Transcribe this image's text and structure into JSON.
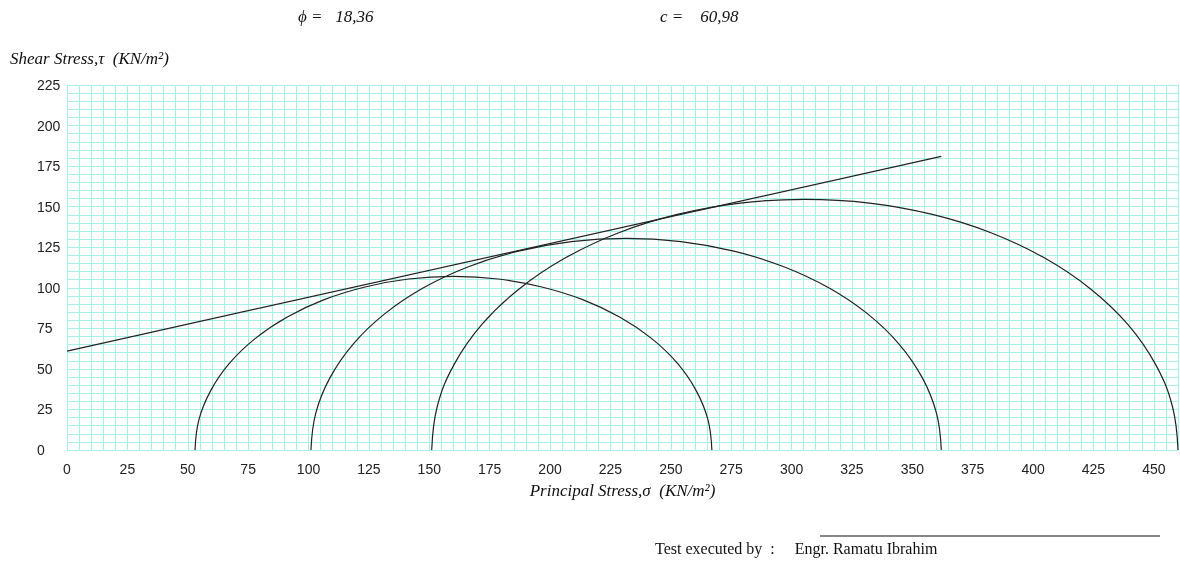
{
  "chart_data": {
    "type": "line",
    "xlabel": "Principal Stress,σ  (KN/m²)",
    "ylabel": "Shear Stress,τ  (KN/m²)",
    "annotations": [
      "ϕ =   18,36",
      "c =    60,98",
      "Test executed by  :     Engr. Ramatu Ibrahim"
    ],
    "series": [
      {
        "color": "#222222",
        "x": [
          0,
          362
        ],
        "values": [
          61,
          181
        ]
      },
      {
        "color": "#222222",
        "x": [
          53,
          54.6,
          59.5,
          67.3,
          78,
          91.2,
          106.5,
          123.4,
          141.4,
          160,
          178.6,
          196.6,
          213.5,
          228.8,
          242,
          252.7,
          260.5,
          265.4,
          267
        ],
        "values": [
          0,
          18.6,
          36.6,
          53.5,
          68.8,
          82,
          92.7,
          100.5,
          105.4,
          107,
          105.4,
          100.5,
          92.7,
          82,
          68.8,
          53.5,
          36.6,
          18.6,
          0
        ]
      },
      {
        "color": "#222222",
        "x": [
          101,
          103,
          108.9,
          118.5,
          131.5,
          147.6,
          166.2,
          186.9,
          208.8,
          231.5,
          254.2,
          276.1,
          296.8,
          315.4,
          331.5,
          344.5,
          354.1,
          360,
          362
        ],
        "values": [
          0,
          22.7,
          44.6,
          65.3,
          83.9,
          100,
          113,
          122.6,
          128.5,
          130.5,
          128.5,
          122.6,
          113,
          100,
          83.9,
          65.3,
          44.6,
          22.7,
          0
        ]
      },
      {
        "color": "#222222",
        "x": [
          151,
          153.3,
          160.3,
          171.7,
          187.2,
          206.2,
          228.2,
          252.7,
          278.7,
          305.5,
          332.3,
          358.3,
          382.8,
          404.8,
          423.8,
          439.3,
          450.7,
          457.7,
          460
        ],
        "values": [
          0,
          26.8,
          52.8,
          77.3,
          99.3,
          118.3,
          133.8,
          145.2,
          152.2,
          154.5,
          152.2,
          145.2,
          133.8,
          118.3,
          99.3,
          77.3,
          52.8,
          26.8,
          0
        ]
      }
    ],
    "xlim": [
      0,
      460
    ],
    "xticks": [
      0,
      {
        "value": 5,
        "label": null
      },
      {
        "value": 10,
        "label": null
      },
      {
        "value": 15,
        "label": null
      },
      {
        "value": 20,
        "label": null
      },
      25,
      {
        "value": 30,
        "label": null
      },
      {
        "value": 35,
        "label": null
      },
      {
        "value": 40,
        "label": null
      },
      {
        "value": 45,
        "label": null
      },
      50,
      {
        "value": 55,
        "label": null
      },
      {
        "value": 60,
        "label": null
      },
      {
        "value": 65,
        "label": null
      },
      {
        "value": 70,
        "label": null
      },
      75,
      {
        "value": 80,
        "label": null
      },
      {
        "value": 85,
        "label": null
      },
      {
        "value": 90,
        "label": null
      },
      {
        "value": 95,
        "label": null
      },
      100,
      {
        "value": 105,
        "label": null
      },
      {
        "value": 110,
        "label": null
      },
      {
        "value": 115,
        "label": null
      },
      {
        "value": 120,
        "label": null
      },
      125,
      {
        "value": 130,
        "label": null
      },
      {
        "value": 135,
        "label": null
      },
      {
        "value": 140,
        "label": null
      },
      {
        "value": 145,
        "label": null
      },
      150,
      {
        "value": 155,
        "label": null
      },
      {
        "value": 160,
        "label": null
      },
      {
        "value": 165,
        "label": null
      },
      {
        "value": 170,
        "label": null
      },
      175,
      {
        "value": 180,
        "label": null
      },
      {
        "value": 185,
        "label": null
      },
      {
        "value": 190,
        "label": null
      },
      {
        "value": 195,
        "label": null
      },
      200,
      {
        "value": 205,
        "label": null
      },
      {
        "value": 210,
        "label": null
      },
      {
        "value": 215,
        "label": null
      },
      {
        "value": 220,
        "label": null
      },
      225,
      {
        "value": 230,
        "label": null
      },
      {
        "value": 235,
        "label": null
      },
      {
        "value": 240,
        "label": null
      },
      {
        "value": 245,
        "label": null
      },
      250,
      {
        "value": 255,
        "label": null
      },
      {
        "value": 260,
        "label": null
      },
      {
        "value": 265,
        "label": null
      },
      {
        "value": 270,
        "label": null
      },
      275,
      {
        "value": 280,
        "label": null
      },
      {
        "value": 285,
        "label": null
      },
      {
        "value": 290,
        "label": null
      },
      {
        "value": 295,
        "label": null
      },
      300,
      {
        "value": 305,
        "label": null
      },
      {
        "value": 310,
        "label": null
      },
      {
        "value": 315,
        "label": null
      },
      {
        "value": 320,
        "label": null
      },
      325,
      {
        "value": 330,
        "label": null
      },
      {
        "value": 335,
        "label": null
      },
      {
        "value": 340,
        "label": null
      },
      {
        "value": 345,
        "label": null
      },
      350,
      {
        "value": 355,
        "label": null
      },
      {
        "value": 360,
        "label": null
      },
      {
        "value": 365,
        "label": null
      },
      {
        "value": 370,
        "label": null
      },
      375,
      {
        "value": 380,
        "label": null
      },
      {
        "value": 385,
        "label": null
      },
      {
        "value": 390,
        "label": null
      },
      {
        "value": 395,
        "label": null
      },
      400,
      {
        "value": 405,
        "label": null
      },
      {
        "value": 410,
        "label": null
      },
      {
        "value": 415,
        "label": null
      },
      {
        "value": 420,
        "label": null
      },
      425,
      {
        "value": 430,
        "label": null
      },
      {
        "value": 435,
        "label": null
      },
      {
        "value": 440,
        "label": null
      },
      {
        "value": 445,
        "label": null
      },
      450,
      {
        "value": 455,
        "label": null
      },
      {
        "value": 460,
        "label": null
      }
    ],
    "ylim": [
      0,
      225
    ],
    "yticks": [
      0,
      {
        "value": 5,
        "label": null
      },
      {
        "value": 10,
        "label": null
      },
      {
        "value": 15,
        "label": null
      },
      {
        "value": 20,
        "label": null
      },
      25,
      {
        "value": 30,
        "label": null
      },
      {
        "value": 35,
        "label": null
      },
      {
        "value": 40,
        "label": null
      },
      {
        "value": 45,
        "label": null
      },
      50,
      {
        "value": 55,
        "label": null
      },
      {
        "value": 60,
        "label": null
      },
      {
        "value": 65,
        "label": null
      },
      {
        "value": 70,
        "label": null
      },
      75,
      {
        "value": 80,
        "label": null
      },
      {
        "value": 85,
        "label": null
      },
      {
        "value": 90,
        "label": null
      },
      {
        "value": 95,
        "label": null
      },
      100,
      {
        "value": 105,
        "label": null
      },
      {
        "value": 110,
        "label": null
      },
      {
        "value": 115,
        "label": null
      },
      {
        "value": 120,
        "label": null
      },
      125,
      {
        "value": 130,
        "label": null
      },
      {
        "value": 135,
        "label": null
      },
      {
        "value": 140,
        "label": null
      },
      {
        "value": 145,
        "label": null
      },
      150,
      {
        "value": 155,
        "label": null
      },
      {
        "value": 160,
        "label": null
      },
      {
        "value": 165,
        "label": null
      },
      {
        "value": 170,
        "label": null
      },
      175,
      {
        "value": 180,
        "label": null
      },
      {
        "value": 185,
        "label": null
      },
      {
        "value": 190,
        "label": null
      },
      {
        "value": 195,
        "label": null
      },
      200,
      {
        "value": 205,
        "label": null
      },
      {
        "value": 210,
        "label": null
      },
      {
        "value": 215,
        "label": null
      },
      {
        "value": 220,
        "label": null
      },
      225
    ],
    "grid": true,
    "marker": "none",
    "line_style": "solid"
  }
}
